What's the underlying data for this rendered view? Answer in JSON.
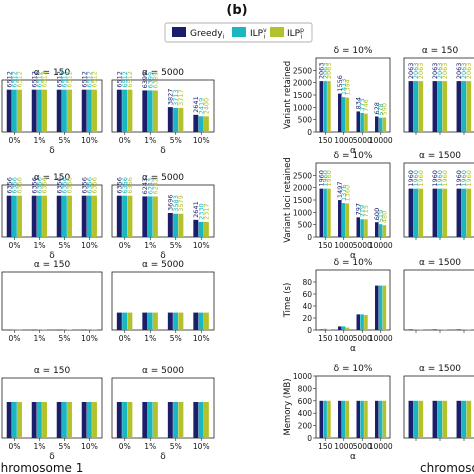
{
  "figure": {
    "panel_label": "(b)",
    "bottom_labels": {
      "left": "chromosome 1",
      "right": "chromoso"
    },
    "legend": {
      "entries": [
        {
          "label": "Greedy",
          "sub": "i",
          "sup": "",
          "color": "#1b1f6b"
        },
        {
          "label": "ILP",
          "sub": "i",
          "sup": "v",
          "color": "#1ab6c2"
        },
        {
          "label": "ILP",
          "sub": "i",
          "sup": "p",
          "color": "#b3c22a"
        }
      ]
    }
  },
  "chart_data": [
    {
      "type": "bar",
      "id": "r1-alpha150",
      "title": "α = 150",
      "xlabel": "δ",
      "ylabel": "",
      "categories": [
        "0%",
        "1%",
        "5%",
        "10%"
      ],
      "ylim": [
        0,
        8000
      ],
      "yticks": [],
      "series": [
        {
          "name": "Greedy_i",
          "values": [
            6512,
            6512,
            6512,
            6512
          ]
        },
        {
          "name": "ILP^v_i",
          "values": [
            6512,
            6512,
            6512,
            6512
          ]
        },
        {
          "name": "ILP^p_i",
          "values": [
            6512,
            6512,
            6512,
            6512
          ]
        }
      ],
      "data_labels": true
    },
    {
      "type": "bar",
      "id": "r1-alpha5000",
      "title": "α = 5000",
      "xlabel": "δ",
      "ylabel": "",
      "categories": [
        "0%",
        "1%",
        "5%",
        "10%"
      ],
      "ylim": [
        0,
        8000
      ],
      "yticks": [],
      "series": [
        {
          "name": "Greedy_i",
          "values": [
            6512,
            6399,
            3827,
            2641
          ]
        },
        {
          "name": "ILP^v_i",
          "values": [
            6512,
            6399,
            3713,
            2419
          ]
        },
        {
          "name": "ILP^p_i",
          "values": [
            6512,
            6389,
            3717,
            2400
          ]
        }
      ],
      "data_labels": true
    },
    {
      "type": "bar",
      "id": "r1-delta10",
      "title": "δ = 10%",
      "xlabel": "α",
      "ylabel": "Variant retained",
      "categories": [
        "150",
        "1000",
        "5000",
        "10000"
      ],
      "ylim": [
        0,
        3000
      ],
      "yticks": [
        0,
        500,
        1000,
        1500,
        2000,
        2500
      ],
      "series": [
        {
          "name": "Greedy_i",
          "values": [
            2063,
            1556,
            834,
            628
          ]
        },
        {
          "name": "ILP^v_i",
          "values": [
            2063,
            1413,
            773,
            578
          ]
        },
        {
          "name": "ILP^p_i",
          "values": [
            2063,
            1394,
            746,
            590
          ]
        }
      ],
      "data_labels": true
    },
    {
      "type": "bar",
      "id": "r1-alpha1500",
      "title": "α = 150",
      "xlabel": "",
      "ylabel": "",
      "categories": [
        "",
        "",
        ""
      ],
      "ylim": [
        0,
        3000
      ],
      "yticks": [],
      "series": [
        {
          "name": "Greedy_i",
          "values": [
            2063,
            2063,
            2063
          ]
        },
        {
          "name": "ILP^v_i",
          "values": [
            2063,
            2063,
            2063
          ]
        },
        {
          "name": "ILP^p_i",
          "values": [
            2063,
            2063,
            2063
          ]
        }
      ],
      "data_labels": true
    },
    {
      "type": "bar",
      "id": "r2-alpha150",
      "title": "α = 150",
      "xlabel": "δ",
      "ylabel": "",
      "categories": [
        "0%",
        "1%",
        "5%",
        "10%"
      ],
      "ylim": [
        0,
        8000
      ],
      "yticks": [],
      "series": [
        {
          "name": "Greedy_i",
          "values": [
            6356,
            6356,
            6356,
            6356
          ]
        },
        {
          "name": "ILP^v_i",
          "values": [
            6356,
            6356,
            6356,
            6356
          ]
        },
        {
          "name": "ILP^p_i",
          "values": [
            6356,
            6356,
            6356,
            6356
          ]
        }
      ],
      "data_labels": true
    },
    {
      "type": "bar",
      "id": "r2-alpha5000",
      "title": "α = 5000",
      "xlabel": "δ",
      "ylabel": "",
      "categories": [
        "0%",
        "1%",
        "5%",
        "10%"
      ],
      "ylim": [
        0,
        8000
      ],
      "yticks": [],
      "series": [
        {
          "name": "Greedy_i",
          "values": [
            6356,
            6243,
            3696,
            2641
          ]
        },
        {
          "name": "ILP^v_i",
          "values": [
            6356,
            6243,
            3583,
            2330
          ]
        },
        {
          "name": "ILP^p_i",
          "values": [
            6356,
            6242,
            3579,
            2317
          ]
        }
      ],
      "data_labels": true
    },
    {
      "type": "bar",
      "id": "r2-delta10",
      "title": "δ = 10%",
      "xlabel": "α",
      "ylabel": "Variant loci retained",
      "categories": [
        "150",
        "1000",
        "5000",
        "10000"
      ],
      "ylim": [
        0,
        3000
      ],
      "yticks": [
        0,
        500,
        1000,
        1500,
        2000,
        2500
      ],
      "series": [
        {
          "name": "Greedy_i",
          "values": [
            1960,
            1497,
            797,
            600
          ]
        },
        {
          "name": "ILP^v_i",
          "values": [
            1960,
            1376,
            719,
            519
          ]
        },
        {
          "name": "ILP^p_i",
          "values": [
            1960,
            1360,
            715,
            480
          ]
        }
      ],
      "data_labels": true
    },
    {
      "type": "bar",
      "id": "r2-alpha1500",
      "title": "α = 1500",
      "xlabel": "",
      "ylabel": "",
      "categories": [
        "",
        "",
        ""
      ],
      "ylim": [
        0,
        3000
      ],
      "yticks": [],
      "series": [
        {
          "name": "Greedy_i",
          "values": [
            1960,
            1960,
            1960
          ]
        },
        {
          "name": "ILP^v_i",
          "values": [
            1960,
            1960,
            1960
          ]
        },
        {
          "name": "ILP^p_i",
          "values": [
            1960,
            1960,
            1960
          ]
        }
      ],
      "data_labels": true
    },
    {
      "type": "bar",
      "id": "r3-alpha150",
      "title": "α = 150",
      "xlabel": "",
      "ylabel": "",
      "categories": [
        "0%",
        "1%",
        "5%",
        "10%"
      ],
      "ylim": [
        0,
        100
      ],
      "yticks": [],
      "series": [
        {
          "name": "Greedy_i",
          "values": [
            0.4,
            0.4,
            0.4,
            0.4
          ]
        },
        {
          "name": "ILP^v_i",
          "values": [
            0.5,
            1.0,
            1.2,
            1.0
          ]
        },
        {
          "name": "ILP^p_i",
          "values": [
            0.4,
            0.6,
            0.8,
            0.7
          ]
        }
      ],
      "data_labels": false
    },
    {
      "type": "bar",
      "id": "r3-alpha5000",
      "title": "α = 5000",
      "xlabel": "",
      "ylabel": "",
      "categories": [
        "0%",
        "1%",
        "5%",
        "10%"
      ],
      "ylim": [
        0,
        100
      ],
      "yticks": [],
      "series": [
        {
          "name": "Greedy_i",
          "values": [
            30,
            30,
            30,
            30
          ]
        },
        {
          "name": "ILP^v_i",
          "values": [
            30,
            30,
            30,
            30
          ]
        },
        {
          "name": "ILP^p_i",
          "values": [
            30,
            30,
            30,
            30
          ]
        }
      ],
      "data_labels": false
    },
    {
      "type": "bar",
      "id": "r3-delta10",
      "title": "δ = 10%",
      "xlabel": "α",
      "ylabel": "Time (s)",
      "categories": [
        "150",
        "1000",
        "5000",
        "10000"
      ],
      "ylim": [
        0,
        100
      ],
      "yticks": [
        0,
        20,
        40,
        60,
        80
      ],
      "series": [
        {
          "name": "Greedy_i",
          "values": [
            1,
            6,
            26,
            74
          ]
        },
        {
          "name": "ILP^v_i",
          "values": [
            2,
            6,
            26,
            74
          ]
        },
        {
          "name": "ILP^p_i",
          "values": [
            1,
            4,
            25,
            74
          ]
        }
      ],
      "data_labels": false
    },
    {
      "type": "bar",
      "id": "r3-alpha1500",
      "title": "α = 1500",
      "xlabel": "",
      "ylabel": "",
      "categories": [
        "",
        "",
        ""
      ],
      "ylim": [
        0,
        100
      ],
      "yticks": [],
      "series": [
        {
          "name": "Greedy_i",
          "values": [
            1,
            1,
            1
          ]
        },
        {
          "name": "ILP^v_i",
          "values": [
            1,
            1,
            1
          ]
        },
        {
          "name": "ILP^p_i",
          "values": [
            1,
            1,
            1
          ]
        }
      ],
      "data_labels": false
    },
    {
      "type": "bar",
      "id": "r4-alpha150",
      "title": "α = 150",
      "xlabel": "δ",
      "ylabel": "",
      "categories": [
        "0%",
        "1%",
        "5%",
        "10%"
      ],
      "ylim": [
        0,
        1000
      ],
      "yticks": [],
      "series": [
        {
          "name": "Greedy_i",
          "values": [
            600,
            600,
            600,
            600
          ]
        },
        {
          "name": "ILP^v_i",
          "values": [
            600,
            600,
            600,
            600
          ]
        },
        {
          "name": "ILP^p_i",
          "values": [
            600,
            600,
            600,
            600
          ]
        }
      ],
      "data_labels": false
    },
    {
      "type": "bar",
      "id": "r4-alpha5000",
      "title": "α = 5000",
      "xlabel": "δ",
      "ylabel": "",
      "categories": [
        "0%",
        "1%",
        "5%",
        "10%"
      ],
      "ylim": [
        0,
        1000
      ],
      "yticks": [],
      "series": [
        {
          "name": "Greedy_i",
          "values": [
            600,
            600,
            600,
            600
          ]
        },
        {
          "name": "ILP^v_i",
          "values": [
            600,
            600,
            600,
            600
          ]
        },
        {
          "name": "ILP^p_i",
          "values": [
            600,
            600,
            600,
            600
          ]
        }
      ],
      "data_labels": false
    },
    {
      "type": "bar",
      "id": "r4-delta10",
      "title": "δ = 10%",
      "xlabel": "α",
      "ylabel": "Memory (MB)",
      "categories": [
        "150",
        "1000",
        "5000",
        "10000"
      ],
      "ylim": [
        0,
        1000
      ],
      "yticks": [
        0,
        200,
        400,
        600,
        800,
        1000
      ],
      "series": [
        {
          "name": "Greedy_i",
          "values": [
            600,
            600,
            600,
            600
          ]
        },
        {
          "name": "ILP^v_i",
          "values": [
            600,
            600,
            600,
            600
          ]
        },
        {
          "name": "ILP^p_i",
          "values": [
            600,
            600,
            600,
            600
          ]
        }
      ],
      "data_labels": false
    },
    {
      "type": "bar",
      "id": "r4-alpha1500",
      "title": "α = 1500",
      "xlabel": "",
      "ylabel": "",
      "categories": [
        "",
        "",
        ""
      ],
      "ylim": [
        0,
        1000
      ],
      "yticks": [],
      "series": [
        {
          "name": "Greedy_i",
          "values": [
            600,
            600,
            600
          ]
        },
        {
          "name": "ILP^v_i",
          "values": [
            600,
            600,
            600
          ]
        },
        {
          "name": "ILP^p_i",
          "values": [
            600,
            600,
            600
          ]
        }
      ],
      "data_labels": false
    }
  ]
}
